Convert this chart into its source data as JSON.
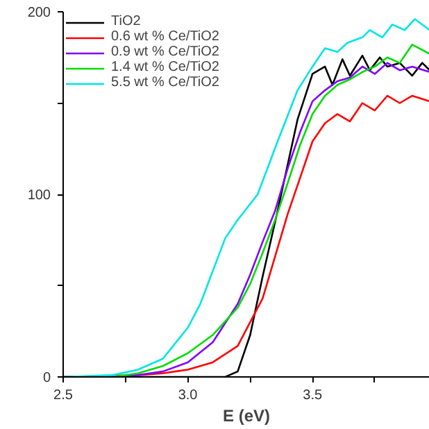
{
  "chart_data": {
    "type": "line",
    "xlabel": "E (eV)",
    "xlim": [
      2.5,
      3.97
    ],
    "ylim": [
      0,
      200
    ],
    "xticks": [
      2.5,
      {
        "value": 2.75,
        "label": null
      },
      {
        "value": 3.0,
        "label": "3.0"
      },
      {
        "value": 3.25,
        "label": null
      },
      3.5,
      {
        "value": 3.75,
        "label": null
      }
    ],
    "yticks": [
      0,
      {
        "value": 50,
        "label": null
      },
      100,
      {
        "value": 150,
        "label": null
      },
      200
    ],
    "grid": false,
    "legend": "top left",
    "marker": "none",
    "line_style": "solid",
    "series": [
      {
        "name": "TiO2",
        "color": "#000000",
        "x": [
          2.5,
          3.1,
          3.15,
          3.2,
          3.25,
          3.3,
          3.36,
          3.44,
          3.5,
          3.55,
          3.58,
          3.62,
          3.65,
          3.7,
          3.73,
          3.77,
          3.8,
          3.85,
          3.9,
          3.94,
          3.97
        ],
        "values": [
          0,
          0,
          0,
          3,
          23,
          55,
          91,
          141,
          166,
          170,
          160,
          174,
          165,
          176,
          168,
          175,
          170,
          172,
          165,
          172,
          168
        ]
      },
      {
        "name": "0.6 wt % Ce/TiO2",
        "color": "#ff0000",
        "x": [
          2.5,
          2.8,
          2.9,
          3.0,
          3.1,
          3.2,
          3.25,
          3.3,
          3.35,
          3.4,
          3.45,
          3.5,
          3.55,
          3.6,
          3.65,
          3.7,
          3.75,
          3.8,
          3.85,
          3.9,
          3.97
        ],
        "values": [
          0,
          1,
          2,
          4,
          8,
          17,
          30,
          43,
          66,
          89,
          109,
          129,
          139,
          144,
          140,
          150,
          146,
          154,
          150,
          154,
          151
        ]
      },
      {
        "name": "0.9 wt % Ce/TiO2",
        "color": "#7f00ff",
        "x": [
          2.5,
          2.7,
          2.8,
          2.9,
          3.0,
          3.1,
          3.2,
          3.25,
          3.3,
          3.35,
          3.4,
          3.45,
          3.5,
          3.55,
          3.6,
          3.65,
          3.7,
          3.75,
          3.8,
          3.85,
          3.9,
          3.97
        ],
        "values": [
          0,
          0,
          1,
          3,
          8,
          19,
          40,
          56,
          74,
          91,
          114,
          134,
          151,
          157,
          162,
          164,
          170,
          166,
          172,
          168,
          170,
          167
        ]
      },
      {
        "name": "1.4 wt % Ce/TiO2",
        "color": "#00dd00",
        "x": [
          2.5,
          2.7,
          2.8,
          2.9,
          3.0,
          3.1,
          3.2,
          3.25,
          3.3,
          3.35,
          3.4,
          3.45,
          3.5,
          3.55,
          3.6,
          3.65,
          3.7,
          3.75,
          3.8,
          3.85,
          3.9,
          3.97
        ],
        "values": [
          0,
          0,
          2,
          6,
          13,
          23,
          38,
          51,
          68,
          86,
          106,
          127,
          144,
          154,
          160,
          163,
          167,
          170,
          175,
          172,
          182,
          177
        ]
      },
      {
        "name": "5.5 wt % Ce/TiO2",
        "color": "#00e5e5",
        "x": [
          2.5,
          2.7,
          2.8,
          2.9,
          3.0,
          3.05,
          3.1,
          3.15,
          3.2,
          3.28,
          3.36,
          3.44,
          3.5,
          3.55,
          3.6,
          3.64,
          3.7,
          3.73,
          3.78,
          3.82,
          3.87,
          3.91,
          3.97
        ],
        "values": [
          0,
          1,
          4,
          10,
          27,
          40,
          58,
          76,
          86,
          100,
          129,
          157,
          170,
          180,
          178,
          183,
          186,
          190,
          186,
          193,
          190,
          196,
          190
        ]
      }
    ]
  }
}
